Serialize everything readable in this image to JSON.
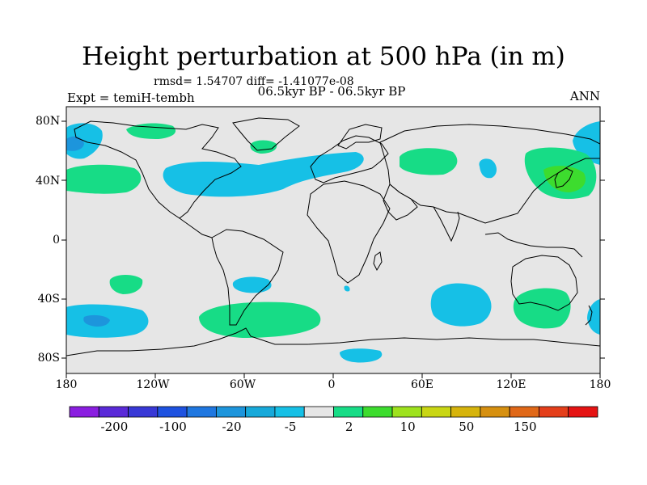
{
  "title": "Height perturbation at 500 hPa (in m)",
  "stats": "rmsd= 1.54707 diff= -1.41077e-08",
  "period": "06.5kyr BP - 06.5kyr BP",
  "experiment": "Expt = temiH-tembh",
  "season": "ANN",
  "lat_labels": [
    "80N",
    "40N",
    "0",
    "40S",
    "80S"
  ],
  "lon_labels": [
    "180",
    "120W",
    "60W",
    "0",
    "60E",
    "120E",
    "180"
  ],
  "colorbar": {
    "colors": [
      "#8a1ee0",
      "#5a2ad8",
      "#3838d6",
      "#1e52e0",
      "#1f77e0",
      "#1d95dc",
      "#17a9da",
      "#16c0e6",
      "#e6e6e6",
      "#17dc86",
      "#3ddc2e",
      "#9ee21e",
      "#c9d614",
      "#d6b40c",
      "#d69010",
      "#e06818",
      "#e43e1a",
      "#e51313"
    ],
    "labels": [
      "-200",
      "-100",
      "-20",
      "-5",
      "2",
      "10",
      "50",
      "150"
    ],
    "neutral": "#e6e6e6"
  },
  "map": {
    "ocean_color": "#e6e6e6",
    "negative_color": "#16c0e6",
    "positive_color": "#17dc86",
    "strong_negative_color": "#1d95dc",
    "strong_positive_color": "#3ddc2e"
  }
}
